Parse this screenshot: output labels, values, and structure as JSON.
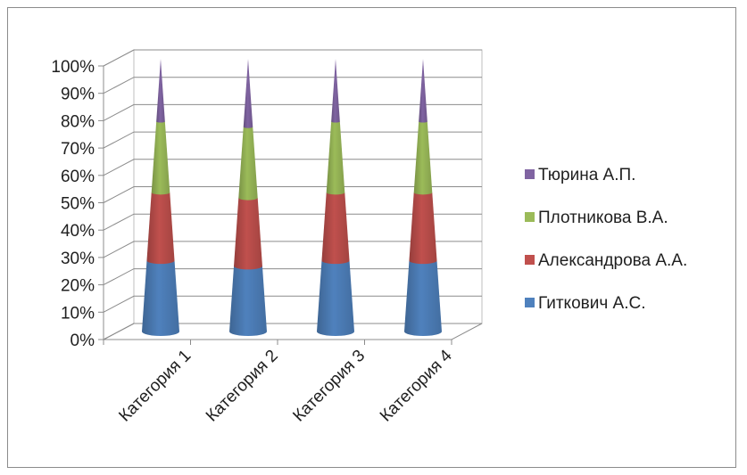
{
  "chart_data": {
    "type": "bar",
    "stacked": true,
    "percent_stacked": true,
    "shape": "cone",
    "categories": [
      "Категория 1",
      "Категория 2",
      "Категория 3",
      "Категория 4"
    ],
    "series": [
      {
        "name": "Гиткович А.С.",
        "values": [
          26,
          24,
          26,
          26
        ],
        "color": "#4f81bd"
      },
      {
        "name": "Александрова А.А.",
        "values": [
          25,
          25,
          25,
          25
        ],
        "color": "#c0504d"
      },
      {
        "name": "Плотникова В.А.",
        "values": [
          26,
          26,
          26,
          26
        ],
        "color": "#9bbb59"
      },
      {
        "name": "Тюрина А.П.",
        "values": [
          23,
          25,
          23,
          23
        ],
        "color": "#8064a2"
      }
    ],
    "y_ticks": [
      "0%",
      "10%",
      "20%",
      "30%",
      "40%",
      "50%",
      "60%",
      "70%",
      "80%",
      "90%",
      "100%"
    ],
    "ylim": [
      0,
      100
    ],
    "grid": true,
    "legend_position": "right"
  }
}
